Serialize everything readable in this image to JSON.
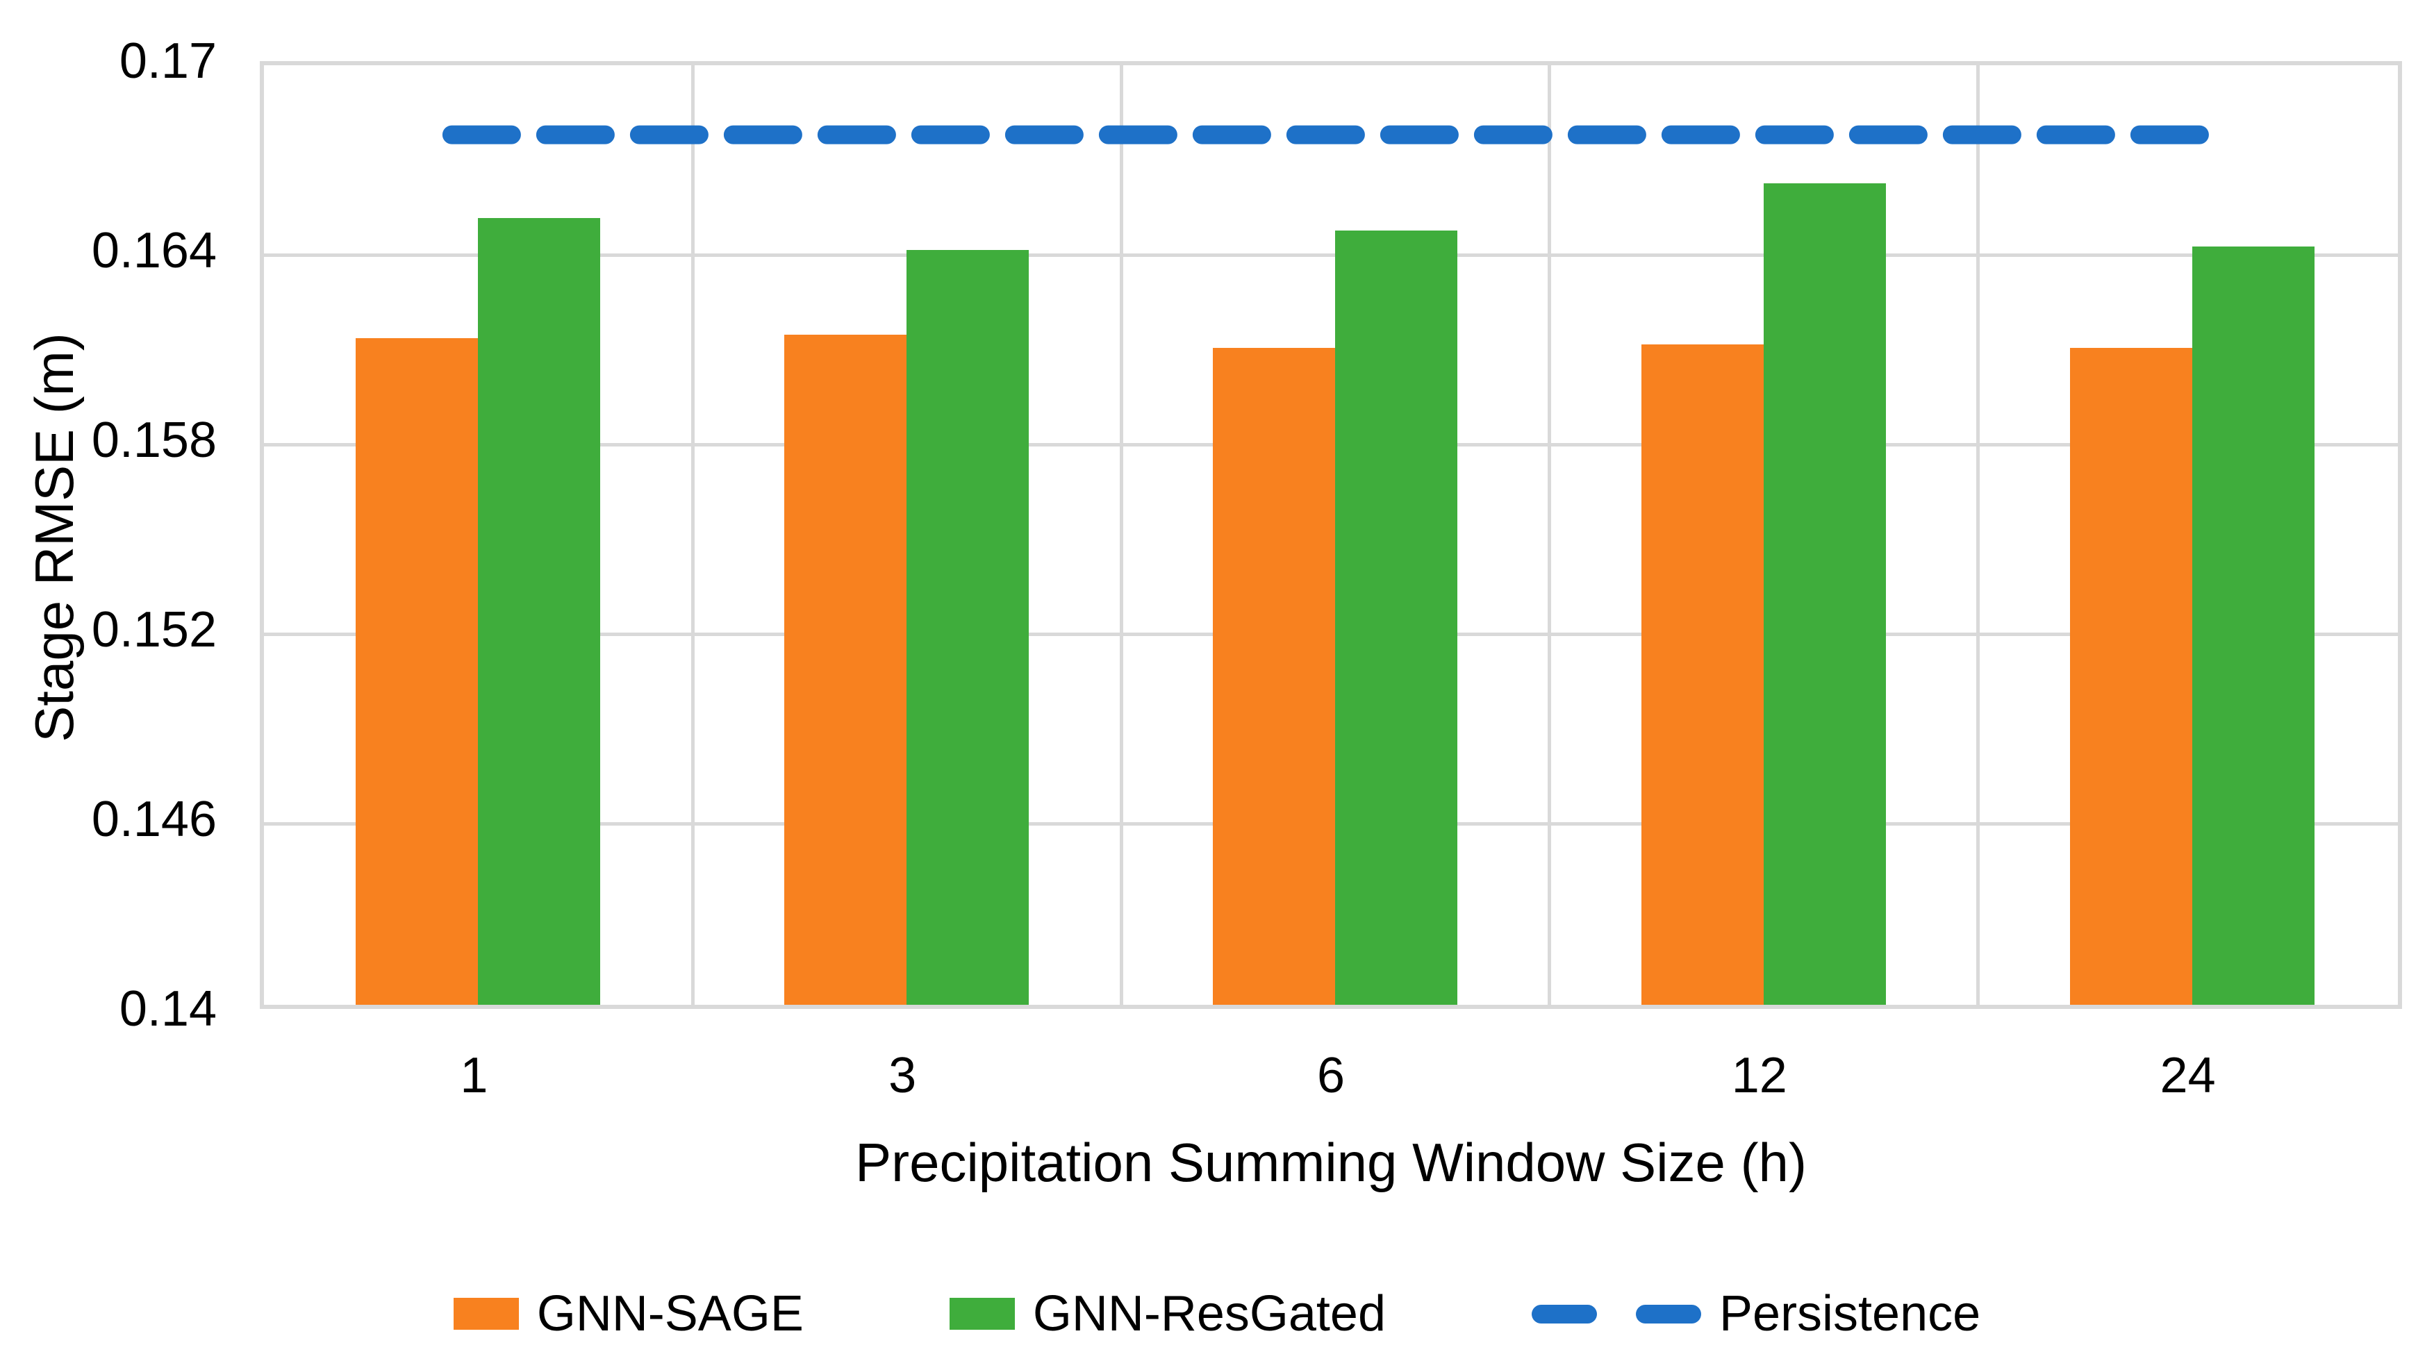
{
  "chart_data": {
    "type": "bar",
    "title": "",
    "xlabel": "Precipitation Summing Window Size (h)",
    "ylabel": "Stage RMSE (m)",
    "categories": [
      "1",
      "3",
      "6",
      "12",
      "24"
    ],
    "series": [
      {
        "name": "GNN-SAGE",
        "kind": "bar",
        "color": "#F8811F",
        "values": [
          0.1611,
          0.1612,
          0.1608,
          0.1609,
          0.1608
        ]
      },
      {
        "name": "GNN-ResGated",
        "kind": "bar",
        "color": "#3FAD3C",
        "values": [
          0.1649,
          0.1639,
          0.1645,
          0.166,
          0.164
        ]
      },
      {
        "name": "Persistence",
        "kind": "dashed-line",
        "color": "#1E71C8",
        "value": 0.1678
      }
    ],
    "ylim": [
      0.14,
      0.17
    ],
    "yticks": [
      "0.17",
      "0.164",
      "0.158",
      "0.152",
      "0.146",
      "0.14"
    ],
    "grid": true,
    "gridline_color": "#d9d9d9",
    "legend_position": "bottom",
    "axis_text_color": "#000000"
  }
}
